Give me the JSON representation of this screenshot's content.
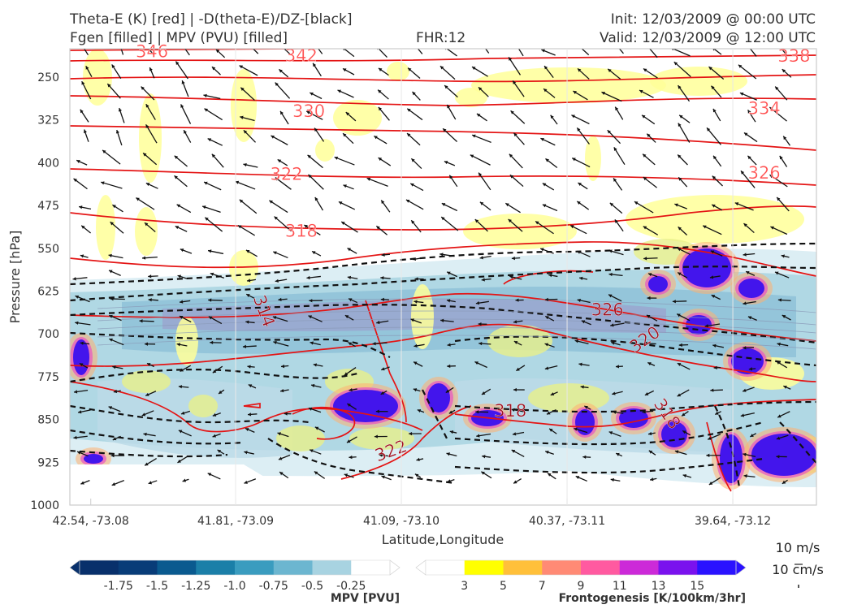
{
  "header": {
    "title_left_1": "Theta-E (K) [red] | -D(theta-E)/DZ-[black]",
    "title_left_2": "Fgen [filled] | MPV (PVU) [filled]",
    "title_center": "FHR:12",
    "title_right_1": "Init: 12/03/2009 @ 00:00 UTC",
    "title_right_2": "Valid: 12/03/2009 @ 12:00 UTC"
  },
  "chart_data": {
    "type": "cross-section",
    "ylabel": "Pressure [hPa]",
    "xlabel": "Latitude,Longitude",
    "y_ticks": [
      "250",
      "325",
      "400",
      "475",
      "550",
      "625",
      "700",
      "775",
      "850",
      "925",
      "1000"
    ],
    "x_ticks": [
      "42.54, -73.08",
      "41.81, -73.09",
      "41.09, -73.10",
      "40.37, -73.11",
      "39.64, -73.12"
    ],
    "y_range_hpa": [
      1000,
      200
    ],
    "theta_e_labels": [
      {
        "value": "346",
        "p": 205,
        "x": 0.11
      },
      {
        "value": "342",
        "p": 212,
        "x": 0.31
      },
      {
        "value": "338",
        "p": 213,
        "x": 0.97
      },
      {
        "value": "334",
        "p": 305,
        "x": 0.93
      },
      {
        "value": "330",
        "p": 310,
        "x": 0.32
      },
      {
        "value": "326",
        "p": 418,
        "x": 0.93
      },
      {
        "value": "322",
        "p": 420,
        "x": 0.29
      },
      {
        "value": "318",
        "p": 520,
        "x": 0.31
      },
      {
        "value": "314",
        "p": 660,
        "x": 0.26
      },
      {
        "value": "326",
        "p": 658,
        "x": 0.72
      },
      {
        "value": "320",
        "p": 710,
        "x": 0.77
      },
      {
        "value": "318",
        "p": 835,
        "x": 0.59
      },
      {
        "value": "322",
        "p": 905,
        "x": 0.43
      },
      {
        "value": "318",
        "p": 840,
        "x": 0.8
      }
    ],
    "theta_e_levels": [
      346,
      342,
      338,
      334,
      330,
      326,
      322,
      318,
      314
    ],
    "mpv_colorbar": {
      "label": "MPV [PVU]",
      "ticks": [
        "-1.75",
        "-1.5",
        "-1.25",
        "-1.0",
        "-0.75",
        "-0.5",
        "-0.25"
      ],
      "colors": [
        "#08306b",
        "#083c78",
        "#0a5a8f",
        "#1b7fa8",
        "#3a9cbf",
        "#6cb6d0",
        "#a8d3e1",
        "#ffffff"
      ]
    },
    "fgen_colorbar": {
      "label": "Frontogenesis [K/100km/3hr]",
      "ticks": [
        "3",
        "5",
        "7",
        "9",
        "11",
        "13",
        "15"
      ],
      "colors": [
        "#ffffff",
        "#ffff00",
        "#ffc03a",
        "#ff8a75",
        "#ff5aa0",
        "#cc2ad8",
        "#7a12ee",
        "#2a12ff"
      ]
    },
    "wind_key": {
      "line1": "10 m/s",
      "line2": "10 cm/s"
    }
  }
}
